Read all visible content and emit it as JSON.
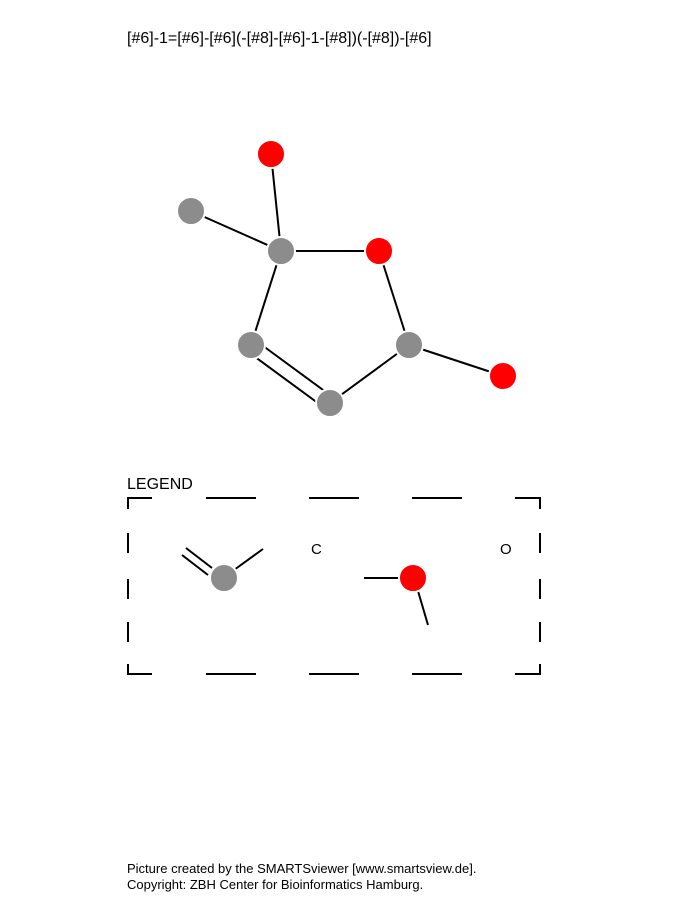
{
  "smarts_pattern": "[#6]-1=[#6]-[#6](-[#8]-[#6]-1-[#8])(-[#8])-[#6]",
  "legend": {
    "title": "LEGEND",
    "carbon_label": "C",
    "oxygen_label": "O"
  },
  "colors": {
    "carbon": "#8c8c8c",
    "oxygen": "#ff0000",
    "bond": "#000000"
  },
  "footer": {
    "line1": "Picture created by the SMARTSviewer [www.smartsview.de].",
    "line2": "Copyright: ZBH Center for Bioinformatics Hamburg."
  }
}
